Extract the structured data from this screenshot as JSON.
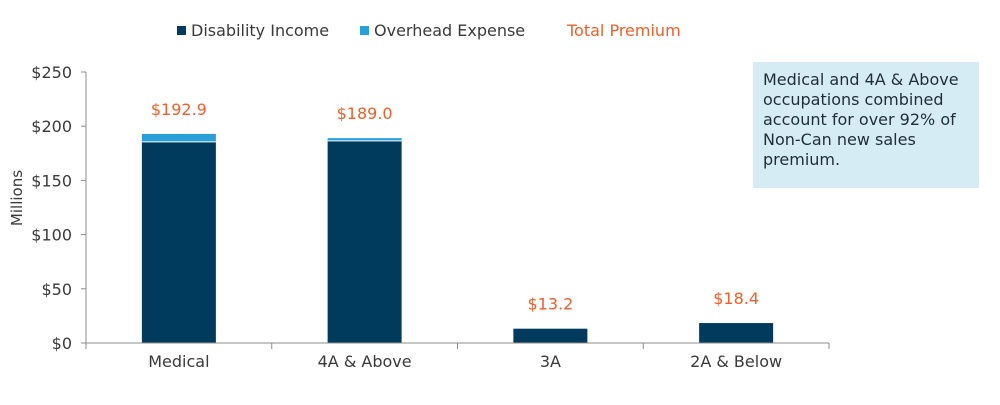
{
  "chart_data": {
    "type": "bar",
    "stacked": true,
    "categories": [
      "Medical",
      "4A & Above",
      "3A",
      "2A & Below"
    ],
    "series": [
      {
        "name": "Disability Income",
        "values": [
          185.5,
          186.5,
          13.2,
          18.4
        ],
        "color": "#003a5d"
      },
      {
        "name": "Overhead Expense",
        "values": [
          7.4,
          2.5,
          0,
          0
        ],
        "color": "#2a9fd8"
      }
    ],
    "totals": {
      "name": "Total Premium",
      "values": [
        192.9,
        189.0,
        13.2,
        18.4
      ],
      "labels": [
        "$192.9",
        "$189.0",
        "$13.2",
        "$18.4"
      ],
      "color": "#e8612c"
    },
    "ylabel": "Millions",
    "ylim": [
      0,
      250
    ],
    "yticks": [
      0,
      50,
      100,
      150,
      200,
      250
    ],
    "ytick_labels": [
      "$0",
      "$50",
      "$100",
      "$150",
      "$200",
      "$250"
    ],
    "legend_position": "top",
    "grid": false
  },
  "callout": {
    "text": "Medical and 4A & Above occupations combined account for over 92% of Non-Can new sales premium."
  }
}
